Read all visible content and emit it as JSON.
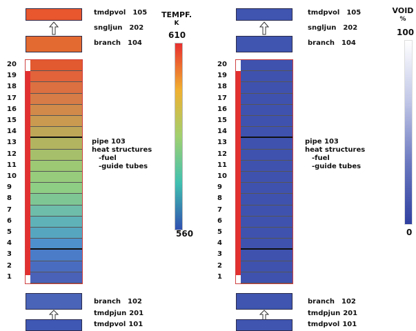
{
  "left": {
    "top_boxes": [
      {
        "component": "tmdpvol",
        "number": "105",
        "color": "#e8572e"
      },
      {
        "component": "sngljun",
        "number": "202"
      },
      {
        "component": "branch",
        "number": "104",
        "color": "#e36a30"
      }
    ],
    "bottom_boxes": [
      {
        "component": "branch",
        "number": "102",
        "color": "#4a64b8"
      },
      {
        "component": "tmdpjun",
        "number": "201"
      },
      {
        "component": "tmdpvol",
        "number": "101",
        "color": "#3f58b4"
      }
    ],
    "pipe_note": [
      "pipe 103",
      "heat structures",
      "-fuel",
      "-guide tubes"
    ],
    "cell_numbers": [
      "20",
      "19",
      "18",
      "17",
      "16",
      "15",
      "14",
      "13",
      "12",
      "11",
      "10",
      "9",
      "8",
      "7",
      "6",
      "5",
      "4",
      "3",
      "2",
      "1"
    ],
    "cell_colors": [
      "#e25a30",
      "#e2623a",
      "#dc7040",
      "#d77c46",
      "#d28a4a",
      "#c99a50",
      "#bfa758",
      "#b2b460",
      "#a6bf6a",
      "#9dc874",
      "#96cc7c",
      "#8ecd84",
      "#7ec795",
      "#6ebdaa",
      "#5eb2b8",
      "#56a6c0",
      "#4e90cc",
      "#4a7cc8",
      "#4a6cc0",
      "#4a62b8"
    ],
    "scale": {
      "title_line1": "TEMPF.",
      "title_line2": "K",
      "max": "610",
      "min": "560",
      "gradient": [
        "#e83030",
        "#f0b030",
        "#a0d070",
        "#40c0b0",
        "#3050b0"
      ]
    }
  },
  "right": {
    "top_boxes": [
      {
        "component": "tmdpvol",
        "number": "105",
        "color": "#3f55b0"
      },
      {
        "component": "sngljun",
        "number": "202"
      },
      {
        "component": "branch",
        "number": "104",
        "color": "#3f55b0"
      }
    ],
    "bottom_boxes": [
      {
        "component": "branch",
        "number": "102",
        "color": "#3f55b0"
      },
      {
        "component": "tmdpjun",
        "number": "201"
      },
      {
        "component": "tmdpvol",
        "number": "101",
        "color": "#3f55b0"
      }
    ],
    "pipe_note": [
      "pipe 103",
      "heat structures",
      "-fuel",
      "-guide tubes"
    ],
    "cell_numbers": [
      "20",
      "19",
      "18",
      "17",
      "16",
      "15",
      "14",
      "13",
      "12",
      "11",
      "10",
      "9",
      "8",
      "7",
      "6",
      "5",
      "4",
      "3",
      "2",
      "1"
    ],
    "cell_color": "#3f52ae",
    "scale": {
      "title_line1": "VOID",
      "title_line2": "%",
      "max": "100",
      "min": "0",
      "gradient": [
        "#ffffff",
        "#c0c6e6",
        "#6a78c0",
        "#3040a0"
      ]
    }
  }
}
